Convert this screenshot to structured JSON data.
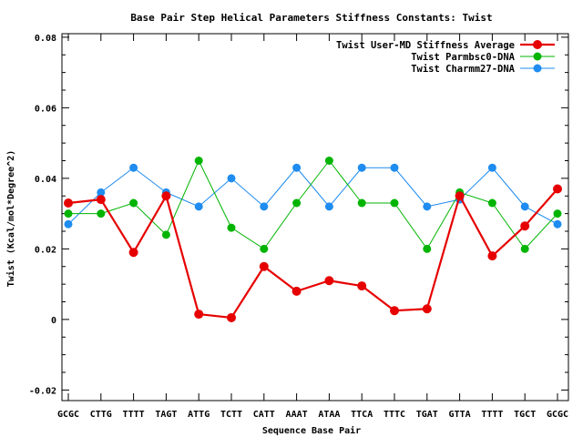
{
  "chart_data": {
    "type": "line",
    "title": "Base Pair Step Helical Parameters Stiffness Constants: Twist",
    "xlabel": "Sequence Base Pair",
    "ylabel": "Twist (Kcal/mol*Degree^2)",
    "categories": [
      "GCGC",
      "CTTG",
      "TTTT",
      "TAGT",
      "ATTG",
      "TCTT",
      "CATT",
      "AAAT",
      "ATAA",
      "TTCA",
      "TTTC",
      "TGAT",
      "GTTA",
      "TTTT",
      "TGCT",
      "GCGC"
    ],
    "ylim": [
      -0.023,
      0.081
    ],
    "yticks": [
      -0.02,
      0,
      0.02,
      0.04,
      0.06,
      0.08
    ],
    "ytick_labels": [
      "-0.02",
      "0",
      "0.02",
      "0.04",
      "0.06",
      "0.08"
    ],
    "grid": false,
    "legend_position": "top-right",
    "series": [
      {
        "name": "Twist User-MD Stiffness Average",
        "color": "#e60000",
        "values": [
          0.033,
          0.034,
          0.019,
          0.035,
          0.0015,
          0.0005,
          0.015,
          0.008,
          0.011,
          0.0095,
          0.0025,
          0.003,
          0.035,
          0.018,
          0.0265,
          0.037
        ]
      },
      {
        "name": "Twist Parmbsc0-DNA",
        "color": "#00b400",
        "values": [
          0.03,
          0.03,
          0.033,
          0.024,
          0.045,
          0.026,
          0.02,
          0.033,
          0.045,
          0.033,
          0.033,
          0.02,
          0.036,
          0.033,
          0.02,
          0.03
        ]
      },
      {
        "name": "Twist Charmm27-DNA",
        "color": "#1e8cf0",
        "values": [
          0.027,
          0.036,
          0.043,
          0.036,
          0.032,
          0.04,
          0.032,
          0.043,
          0.032,
          0.043,
          0.043,
          0.032,
          0.034,
          0.043,
          0.032,
          0.027
        ]
      }
    ]
  }
}
